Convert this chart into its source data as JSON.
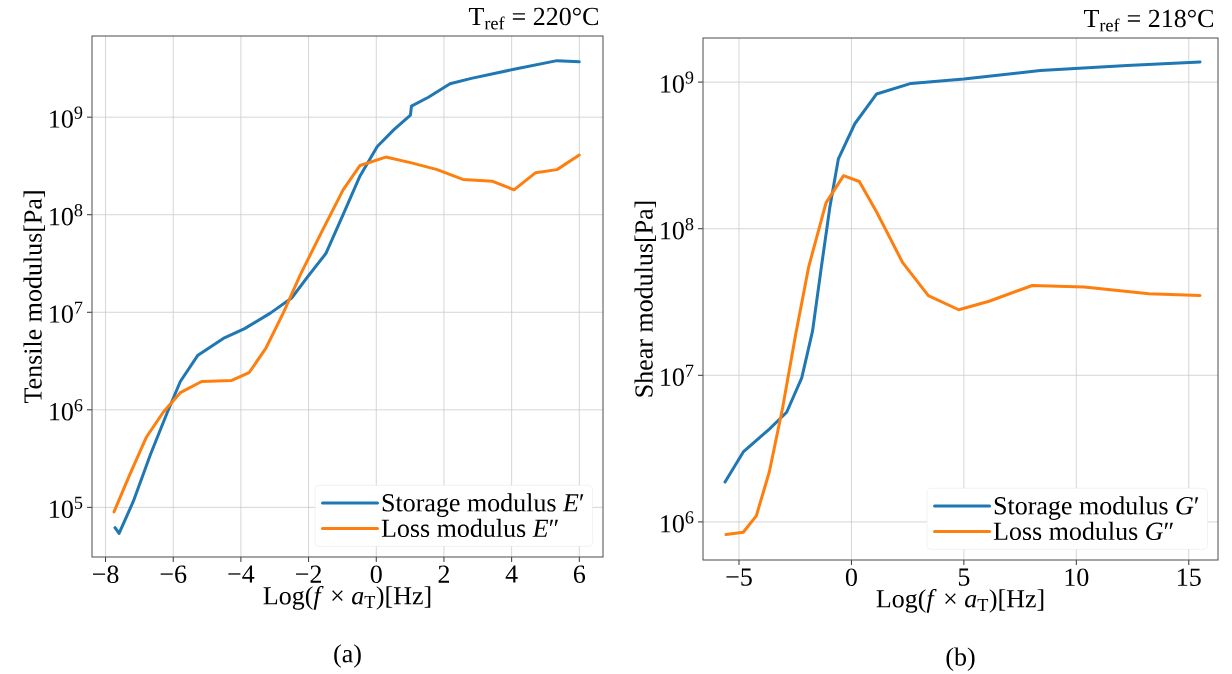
{
  "chart_data": [
    {
      "type": "line",
      "title": "T$_{ref}$ = 220°C",
      "xlabel": "Log(*f* × *a*$_{T}$)[Hz]",
      "ylabel": "Tensile modulus[Pa]",
      "annotations": [
        "(a)"
      ],
      "log": "y",
      "grid": true,
      "legend": "bottom right",
      "marker": "none",
      "line_style": "solid",
      "xlim": [
        -8.4,
        6.7
      ],
      "xticks": [
        {
          "value": -8,
          "label": "−8"
        },
        {
          "value": -6,
          "label": "−6"
        },
        {
          "value": -4,
          "label": "−4"
        },
        {
          "value": -2,
          "label": "−2"
        },
        0,
        2,
        4,
        6
      ],
      "ylim": [
        31000,
        6800000000
      ],
      "yticks": [
        {
          "value": 100000,
          "label": "10$^{5}$"
        },
        {
          "value": 1000000,
          "label": "10$^{6}$"
        },
        {
          "value": 10000000,
          "label": "10$^{7}$"
        },
        {
          "value": 100000000,
          "label": "10$^{8}$"
        },
        {
          "value": 1000000000,
          "label": "10$^{9}$"
        }
      ],
      "series": [
        {
          "name": "Storage modulus *E*′",
          "color": "#1f77b4",
          "x": [
            -7.72,
            -7.6,
            -7.18,
            -6.67,
            -6.17,
            -5.79,
            -5.28,
            -4.52,
            -3.89,
            -3.13,
            -2.5,
            -1.99,
            -1.49,
            -0.98,
            -0.48,
            0.03,
            0.53,
            1.01,
            1.04,
            1.54,
            2.18,
            2.81,
            4.07,
            5.34,
            6.0
          ],
          "values": [
            62000,
            54000,
            115000,
            350000,
            950000,
            1950000,
            3600000,
            5400000,
            6800000,
            9800000,
            14000000,
            24000000,
            40000000,
            100000000,
            250000000,
            500000000,
            750000000,
            1050000000,
            1300000000,
            1600000000,
            2200000000,
            2500000000,
            3100000000,
            3800000000,
            3700000000
          ]
        },
        {
          "name": "Loss modulus *E*″",
          "color": "#ff7f0e",
          "x": [
            -7.75,
            -7.3,
            -6.8,
            -6.29,
            -5.79,
            -5.16,
            -4.27,
            -3.76,
            -3.26,
            -2.75,
            -2.25,
            -1.62,
            -0.98,
            -0.48,
            0.28,
            1.04,
            1.8,
            2.56,
            3.44,
            4.07,
            4.71,
            5.34,
            6.0
          ],
          "values": [
            90000,
            210000,
            520000,
            950000,
            1500000,
            1950000,
            2000000,
            2400000,
            4300000,
            9800000,
            24000000,
            66000000,
            180000000,
            320000000,
            390000000,
            340000000,
            290000000,
            230000000,
            220000000,
            180000000,
            270000000,
            290000000,
            410000000
          ]
        }
      ]
    },
    {
      "type": "line",
      "title": "T$_{ref}$ = 218°C",
      "xlabel": "Log(*f* × *a*$_{T}$)[Hz]",
      "ylabel": "Shear modulus[Pa]",
      "annotations": [
        "(b)"
      ],
      "log": "y",
      "grid": true,
      "legend": "bottom right",
      "marker": "none",
      "line_style": "solid",
      "xlim": [
        -6.6,
        16.3
      ],
      "xticks": [
        {
          "value": -5,
          "label": "−5"
        },
        0,
        5,
        10,
        15
      ],
      "ylim": [
        550000,
        2000000000
      ],
      "yticks": [
        {
          "value": 1000000,
          "label": "10$^{6}$"
        },
        {
          "value": 10000000,
          "label": "10$^{7}$"
        },
        {
          "value": 100000000,
          "label": "10$^{8}$"
        },
        {
          "value": 1000000000,
          "label": "10$^{9}$"
        }
      ],
      "series": [
        {
          "name": "Storage modulus *G*′",
          "color": "#1f77b4",
          "x": [
            -5.62,
            -4.81,
            -3.65,
            -2.88,
            -2.21,
            -1.73,
            -1.35,
            -0.96,
            -0.58,
            0.15,
            1.12,
            2.65,
            5.0,
            8.4,
            12.25,
            15.5
          ],
          "values": [
            1870000,
            3000000,
            4300000,
            5600000,
            9600000,
            20000000,
            53000000,
            140000000,
            300000000,
            520000000,
            830000000,
            980000000,
            1050000000,
            1200000000,
            1300000000,
            1370000000
          ]
        },
        {
          "name": "Loss modulus *G*″",
          "color": "#ff7f0e",
          "x": [
            -5.58,
            -4.81,
            -4.23,
            -3.65,
            -3.06,
            -2.48,
            -1.9,
            -1.13,
            -0.35,
            0.35,
            1.12,
            2.27,
            3.42,
            4.77,
            6.12,
            8.04,
            10.35,
            13.23,
            15.5
          ],
          "values": [
            820000,
            850000,
            1100000,
            2200000,
            6000000,
            19000000,
            55000000,
            150000000,
            230000000,
            210000000,
            130000000,
            59000000,
            35000000,
            28000000,
            32000000,
            41000000,
            40000000,
            36000000,
            35000000
          ]
        }
      ]
    }
  ]
}
